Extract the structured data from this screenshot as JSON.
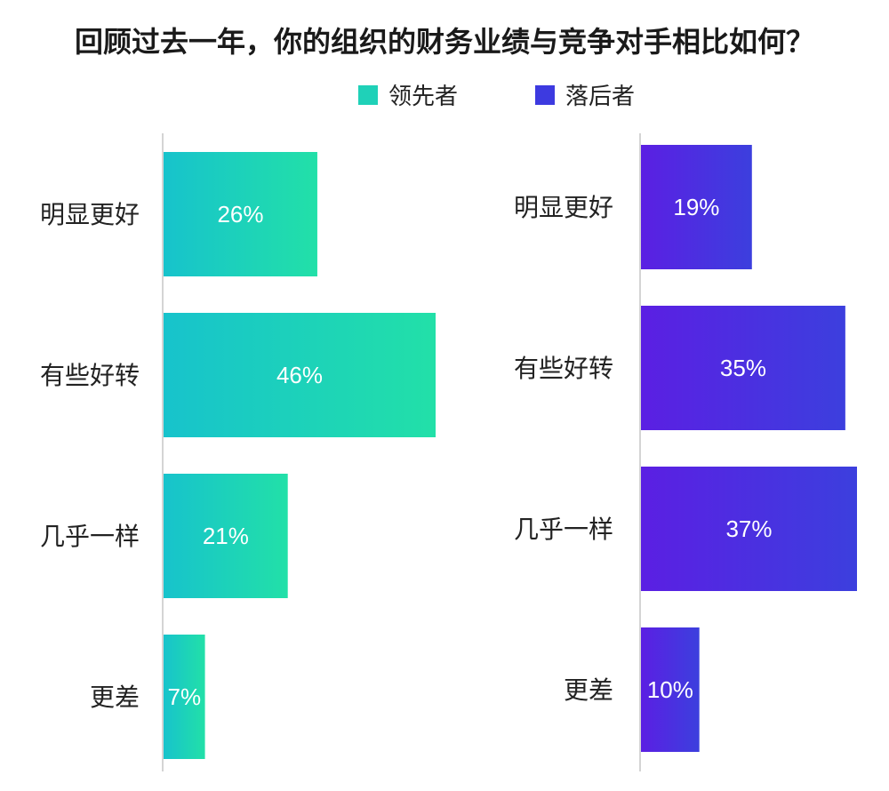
{
  "chart_data": [
    {
      "type": "bar",
      "orientation": "horizontal",
      "title": "回顾过去一年，你的组织的财务业绩与竞争对手相比如何？",
      "categories": [
        "明显更好",
        "有些好转",
        "几乎一样",
        "更差"
      ],
      "series": [
        {
          "name": "领先者",
          "values": [
            26,
            46,
            21,
            7
          ],
          "labels": [
            "26%",
            "46%",
            "21%",
            "7%"
          ],
          "color_start": "#17c3cc",
          "color_end": "#22e0a8"
        }
      ],
      "xlim": [
        0,
        50
      ],
      "legend_position": "top"
    },
    {
      "type": "bar",
      "orientation": "horizontal",
      "categories": [
        "明显更好",
        "有些好转",
        "几乎一样",
        "更差"
      ],
      "series": [
        {
          "name": "落后者",
          "values": [
            19,
            35,
            37,
            10
          ],
          "labels": [
            "19%",
            "35%",
            "37%",
            "10%"
          ],
          "color_start": "#5b1fe3",
          "color_end": "#3c3fde"
        }
      ],
      "xlim": [
        0,
        37
      ],
      "legend_position": "top"
    }
  ],
  "legend": [
    {
      "label": "领先者",
      "color": "#1fd1b8"
    },
    {
      "label": "落后者",
      "color": "#3d3ae0"
    }
  ]
}
